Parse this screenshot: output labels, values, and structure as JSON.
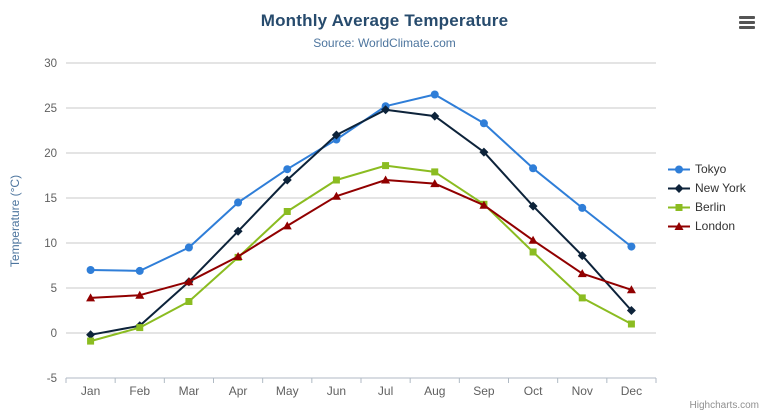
{
  "header": {
    "title": "Monthly Average Temperature",
    "subtitle": "Source: WorldClimate.com"
  },
  "credits": {
    "label": "Highcharts.com"
  },
  "icons": {
    "context_menu": "hamburger-menu-icon"
  },
  "colors": {
    "title": "#274b6d",
    "subtitle": "#4d759e",
    "grid_line": "#c8c8c8",
    "axis_line": "#b0bac4",
    "tick_label": "#606060"
  },
  "chart_data": {
    "type": "line",
    "title": "Monthly Average Temperature",
    "subtitle": "Source: WorldClimate.com",
    "categories": [
      "Jan",
      "Feb",
      "Mar",
      "Apr",
      "May",
      "Jun",
      "Jul",
      "Aug",
      "Sep",
      "Oct",
      "Nov",
      "Dec"
    ],
    "xlabel": "",
    "ylabel": "Temperature (°C)",
    "ylim": [
      -5,
      30
    ],
    "ytick_step": 5,
    "grid": true,
    "legend_position": "right",
    "series": [
      {
        "name": "Tokyo",
        "color": "#2f7ed8",
        "marker": "circle",
        "values": [
          7.0,
          6.9,
          9.5,
          14.5,
          18.2,
          21.5,
          25.2,
          26.5,
          23.3,
          18.3,
          13.9,
          9.6
        ]
      },
      {
        "name": "New York",
        "color": "#0d233a",
        "marker": "diamond",
        "values": [
          -0.2,
          0.8,
          5.7,
          11.3,
          17.0,
          22.0,
          24.8,
          24.1,
          20.1,
          14.1,
          8.6,
          2.5
        ]
      },
      {
        "name": "Berlin",
        "color": "#8bbc21",
        "marker": "square",
        "values": [
          -0.9,
          0.6,
          3.5,
          8.4,
          13.5,
          17.0,
          18.6,
          17.9,
          14.3,
          9.0,
          3.9,
          1.0
        ]
      },
      {
        "name": "London",
        "color": "#910000",
        "marker": "triangle",
        "values": [
          3.9,
          4.2,
          5.7,
          8.5,
          11.9,
          15.2,
          17.0,
          16.6,
          14.2,
          10.3,
          6.6,
          4.8
        ]
      }
    ]
  }
}
